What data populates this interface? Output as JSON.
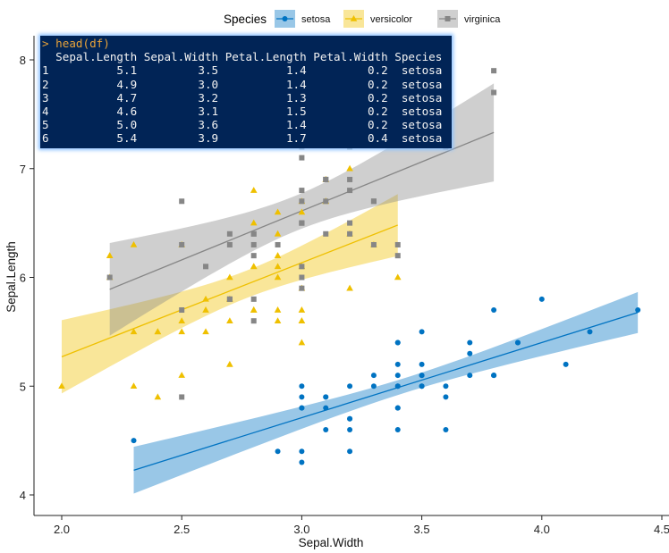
{
  "chart_data": {
    "type": "scatter",
    "xlabel": "Sepal.Width",
    "ylabel": "Sepal.Length",
    "xlim": [
      2.0,
      4.5
    ],
    "ylim": [
      4,
      8
    ],
    "xticks": [
      "2.0",
      "2.5",
      "3.0",
      "3.5",
      "4.0",
      "4.5"
    ],
    "yticks": [
      "4",
      "5",
      "6",
      "7",
      "8"
    ],
    "grid": false,
    "legend": {
      "title": "Species",
      "position": "top"
    },
    "regression": "linear with confidence band",
    "series": [
      {
        "name": "setosa",
        "color": "#0073C2",
        "marker": "circle",
        "x": [
          3.5,
          3.0,
          3.2,
          3.1,
          3.6,
          3.9,
          3.4,
          3.4,
          2.9,
          3.1,
          3.7,
          3.4,
          3.0,
          3.0,
          4.0,
          4.4,
          3.9,
          3.5,
          3.8,
          3.8,
          3.4,
          3.7,
          3.6,
          3.3,
          3.4,
          3.0,
          3.4,
          3.5,
          3.4,
          3.2,
          3.1,
          3.4,
          4.1,
          4.2,
          3.1,
          3.2,
          3.5,
          3.6,
          3.0,
          3.4,
          3.5,
          2.3,
          3.2,
          3.5,
          3.8,
          3.0,
          3.8,
          3.2,
          3.7,
          3.3
        ],
        "y": [
          5.1,
          4.9,
          4.7,
          4.6,
          5.0,
          5.4,
          4.6,
          5.0,
          4.4,
          4.9,
          5.4,
          4.8,
          4.8,
          4.3,
          5.8,
          5.7,
          5.4,
          5.1,
          5.7,
          5.1,
          5.4,
          5.1,
          4.6,
          5.1,
          4.8,
          5.0,
          5.0,
          5.2,
          5.2,
          4.7,
          4.8,
          5.4,
          5.2,
          5.5,
          4.9,
          5.0,
          5.5,
          4.9,
          4.4,
          5.1,
          5.0,
          4.5,
          4.4,
          5.0,
          5.1,
          4.8,
          5.1,
          4.6,
          5.3,
          5.0
        ]
      },
      {
        "name": "versicolor",
        "color": "#EFC000",
        "marker": "triangle",
        "x": [
          3.2,
          3.2,
          3.1,
          2.3,
          2.8,
          2.8,
          3.3,
          2.4,
          2.9,
          2.7,
          2.0,
          3.0,
          2.2,
          2.9,
          2.9,
          3.1,
          3.0,
          2.7,
          2.2,
          2.5,
          3.2,
          2.8,
          2.5,
          2.8,
          2.9,
          3.0,
          2.8,
          3.0,
          2.9,
          2.6,
          2.4,
          2.4,
          2.7,
          2.7,
          3.0,
          3.4,
          3.1,
          2.3,
          3.0,
          2.5,
          2.6,
          3.0,
          2.6,
          2.3,
          2.7,
          3.0,
          2.9,
          2.9,
          2.5,
          2.8
        ],
        "y": [
          7.0,
          6.4,
          6.9,
          5.5,
          6.5,
          5.7,
          6.3,
          4.9,
          6.6,
          5.2,
          5.0,
          5.9,
          6.0,
          6.1,
          5.6,
          6.7,
          5.6,
          5.8,
          6.2,
          5.6,
          5.9,
          6.1,
          6.3,
          6.1,
          6.4,
          6.6,
          6.8,
          6.7,
          6.0,
          5.7,
          5.5,
          5.5,
          5.8,
          6.0,
          5.4,
          6.0,
          6.7,
          6.3,
          5.6,
          5.5,
          5.5,
          6.1,
          5.8,
          5.0,
          5.6,
          5.7,
          5.7,
          6.2,
          5.1,
          5.7
        ]
      },
      {
        "name": "virginica",
        "color": "#868686",
        "marker": "square",
        "x": [
          3.3,
          2.7,
          3.0,
          2.9,
          3.0,
          3.0,
          2.5,
          2.9,
          2.5,
          3.6,
          3.2,
          2.7,
          3.0,
          2.5,
          2.8,
          3.2,
          3.0,
          3.8,
          2.6,
          2.2,
          3.2,
          2.8,
          2.8,
          2.7,
          3.3,
          3.2,
          2.8,
          3.0,
          2.8,
          3.0,
          2.8,
          3.8,
          2.8,
          2.8,
          2.6,
          3.0,
          3.4,
          3.1,
          3.0,
          3.1,
          3.1,
          3.1,
          2.7,
          3.2,
          3.3,
          3.0,
          2.5,
          3.0,
          3.4,
          3.0
        ],
        "y": [
          6.3,
          5.8,
          7.1,
          6.3,
          6.5,
          7.6,
          4.9,
          7.3,
          6.7,
          7.2,
          6.5,
          6.4,
          6.8,
          5.7,
          5.8,
          6.4,
          6.5,
          7.7,
          7.7,
          6.0,
          6.9,
          5.6,
          7.7,
          6.3,
          6.7,
          7.2,
          6.2,
          6.1,
          6.4,
          7.2,
          7.4,
          7.9,
          6.4,
          6.3,
          6.1,
          7.7,
          6.3,
          6.4,
          6.0,
          6.9,
          6.7,
          6.9,
          5.8,
          6.8,
          6.7,
          6.7,
          6.3,
          6.5,
          6.2,
          5.9
        ]
      }
    ]
  },
  "console": {
    "command": "> head(df)",
    "header": "  Sepal.Length Sepal.Width Petal.Length Petal.Width Species",
    "rows": [
      "1          5.1         3.5          1.4         0.2  setosa",
      "2          4.9         3.0          1.4         0.2  setosa",
      "3          4.7         3.2          1.3         0.2  setosa",
      "4          4.6         3.1          1.5         0.2  setosa",
      "5          5.0         3.6          1.4         0.2  setosa",
      "6          5.4         3.9          1.7         0.4  setosa"
    ]
  }
}
